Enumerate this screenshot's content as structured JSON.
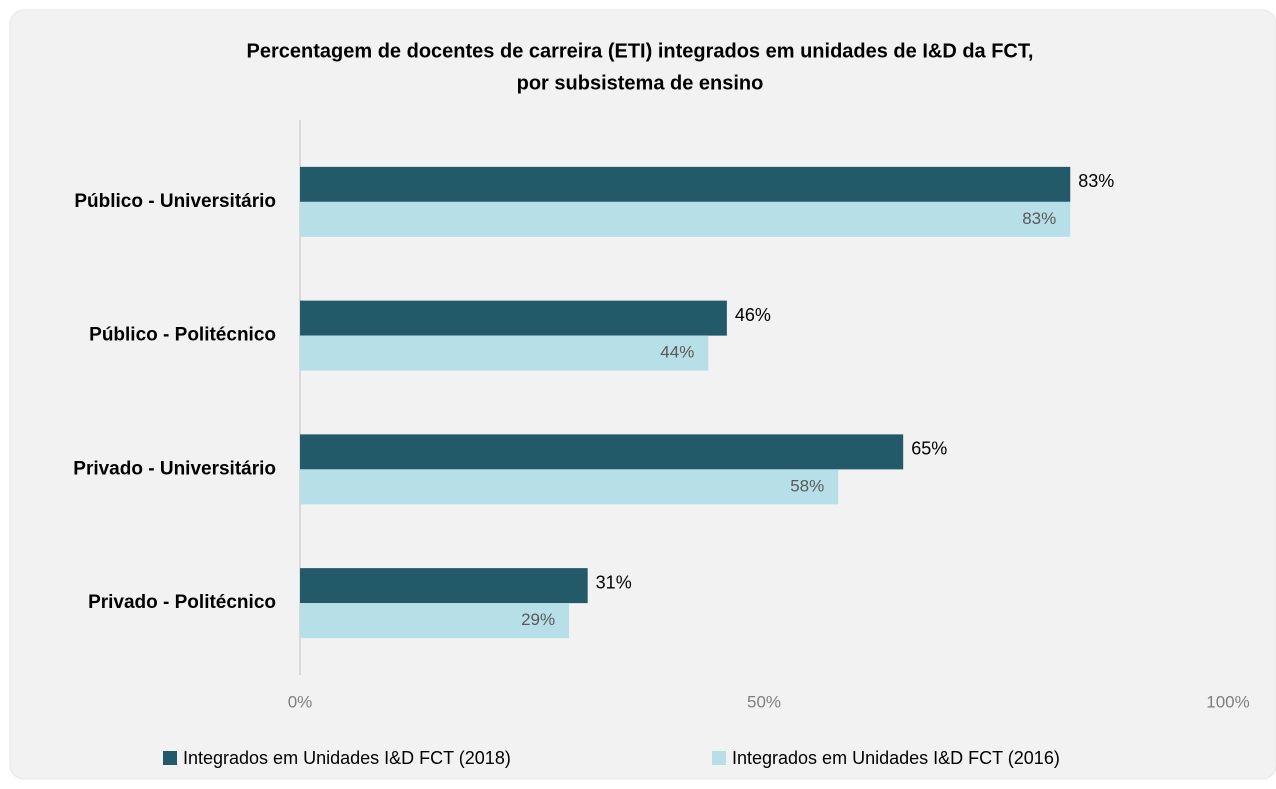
{
  "chart_data": {
    "type": "hbar",
    "title": [
      "Percentagem de docentes de carreira (ETI) integrados em unidades de I&D da FCT,",
      "por subsistema de ensino"
    ],
    "categories": [
      "Público - Universitário",
      "Público - Politécnico",
      "Privado - Universitário",
      "Privado - Politécnico"
    ],
    "series": [
      {
        "name": "Integrados em Unidades I&D FCT (2018)",
        "color": "#235a6a",
        "values": [
          83,
          46,
          65,
          31
        ],
        "value_labels": [
          "83%",
          "46%",
          "65%",
          "31%"
        ]
      },
      {
        "name": "Integrados em Unidades I&D FCT (2016)",
        "color": "#b7dfe8",
        "values": [
          83,
          44,
          58,
          29
        ],
        "value_labels": [
          "83%",
          "44%",
          "58%",
          "29%"
        ]
      }
    ],
    "xlim": [
      0,
      100
    ],
    "xticks": [
      {
        "value": 0,
        "label": "0%"
      },
      {
        "value": 50,
        "label": "50%"
      },
      {
        "value": 100,
        "label": "100%"
      }
    ],
    "legend": "bottom"
  }
}
